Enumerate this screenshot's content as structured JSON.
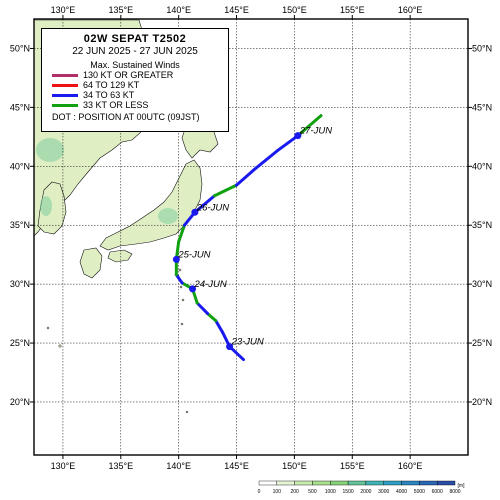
{
  "legend": {
    "title": "02W  SEPAT  T2502",
    "period": "22 JUN 2025 - 27 JUN 2025",
    "heading": "Max. Sustained Winds",
    "items": [
      {
        "label": "130 KT OR GREATER",
        "color": "#b0306a"
      },
      {
        "label": "64 TO 129 KT",
        "color": "#ee1111"
      },
      {
        "label": "34 TO 63 KT",
        "color": "#1a1aee"
      },
      {
        "label": "33 KT OR LESS",
        "color": "#10a010"
      }
    ],
    "dot_note": "DOT : POSITION AT 00UTC (09JST)"
  },
  "axes": {
    "lon_labels": [
      "130°E",
      "135°E",
      "140°E",
      "145°E",
      "150°E",
      "155°E",
      "160°E"
    ],
    "lon_values": [
      130,
      135,
      140,
      145,
      150,
      155,
      160
    ],
    "lat_labels": [
      "20°N",
      "25°N",
      "30°N",
      "35°N",
      "40°N",
      "45°N",
      "50°N"
    ],
    "lat_values": [
      20,
      25,
      30,
      35,
      40,
      45,
      50
    ],
    "lon_range": [
      127.5,
      165
    ],
    "lat_range": [
      15.5,
      52.5
    ]
  },
  "track": {
    "points": [
      {
        "lon": 145.6,
        "lat": 23.6,
        "cat": 3
      },
      {
        "lon": 144.4,
        "lat": 24.7,
        "cat": 2
      },
      {
        "lon": 143.8,
        "lat": 25.9,
        "cat": 2
      },
      {
        "lon": 143.2,
        "lat": 26.9,
        "cat": 2
      },
      {
        "lon": 142.5,
        "lat": 27.5,
        "cat": 3
      },
      {
        "lon": 141.6,
        "lat": 28.4,
        "cat": 2
      },
      {
        "lon": 141.2,
        "lat": 29.6,
        "cat": 3
      },
      {
        "lon": 140.3,
        "lat": 30.1,
        "cat": 3
      },
      {
        "lon": 139.8,
        "lat": 30.8,
        "cat": 2
      },
      {
        "lon": 139.8,
        "lat": 32.1,
        "cat": 3
      },
      {
        "lon": 140.0,
        "lat": 33.6,
        "cat": 3
      },
      {
        "lon": 140.5,
        "lat": 35.0,
        "cat": 3
      },
      {
        "lon": 141.4,
        "lat": 36.1,
        "cat": 2
      },
      {
        "lon": 143.1,
        "lat": 37.5,
        "cat": 2
      },
      {
        "lon": 145.0,
        "lat": 38.4,
        "cat": 3
      },
      {
        "lon": 146.5,
        "lat": 39.7,
        "cat": 2
      },
      {
        "lon": 148.5,
        "lat": 41.3,
        "cat": 2
      },
      {
        "lon": 150.3,
        "lat": 42.6,
        "cat": 2
      },
      {
        "lon": 152.3,
        "lat": 44.3,
        "cat": 3
      }
    ],
    "dots": [
      {
        "date": "23-JUN",
        "lon": 144.4,
        "lat": 24.7
      },
      {
        "date": "24-JUN",
        "lon": 141.2,
        "lat": 29.6
      },
      {
        "date": "25-JUN",
        "lon": 139.8,
        "lat": 32.1
      },
      {
        "date": "26-JUN",
        "lon": 141.4,
        "lat": 36.1
      },
      {
        "date": "27-JUN",
        "lon": 150.3,
        "lat": 42.6
      }
    ]
  },
  "elevation_scale": {
    "labels": [
      "0",
      "100",
      "200",
      "500",
      "1000",
      "1500",
      "2000",
      "3000",
      "4000",
      "5000",
      "6000",
      "8000"
    ],
    "unit": "[m]",
    "colors": [
      "#ffffff",
      "#e6f4d6",
      "#c9ecb0",
      "#a9e08e",
      "#87d37a",
      "#62c49a",
      "#3fb3b6",
      "#2f9fc4",
      "#2c84c0",
      "#2a68b5",
      "#2a4ea8"
    ]
  }
}
